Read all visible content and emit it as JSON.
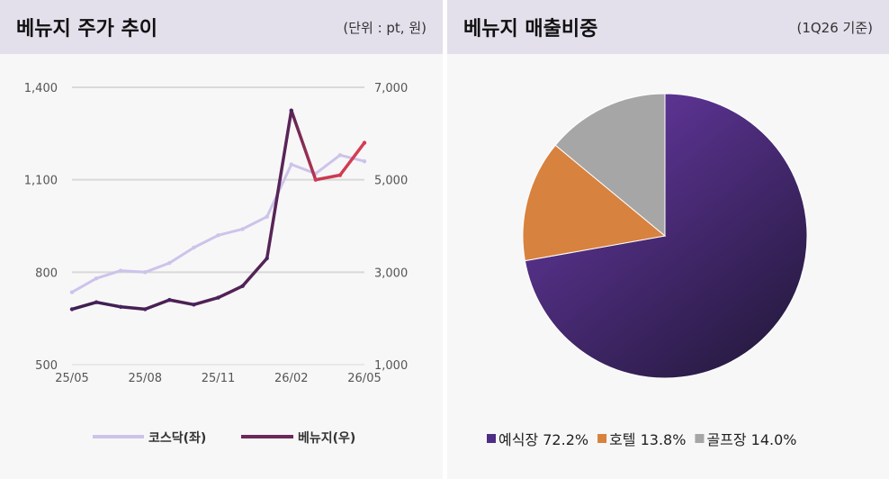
{
  "left": {
    "title": "베뉴지 주가 추이",
    "unit": "(단위 : pt, 원)"
  },
  "right": {
    "title": "베뉴지 매출비중",
    "unit": "(1Q26 기준)"
  },
  "chart_data": [
    {
      "type": "line",
      "x_ticks": [
        "25/05",
        "25/08",
        "25/11",
        "26/02",
        "26/05"
      ],
      "y_left": {
        "ticks": [
          "1,400",
          "1,100",
          "800",
          "500"
        ],
        "ylim": [
          500,
          1400
        ]
      },
      "y_right": {
        "ticks": [
          "7,000",
          "5,000",
          "3,000",
          "1,000"
        ],
        "ylim": [
          1000,
          7000
        ]
      },
      "grid": true,
      "legend": "bottom",
      "series": [
        {
          "name": "코스닥(좌)",
          "axis": "left",
          "color": "#cdc3ea",
          "x": [
            "25/05",
            "25/06",
            "25/07",
            "25/08",
            "25/09",
            "25/10",
            "25/11",
            "25/12",
            "26/01",
            "26/02",
            "26/03",
            "26/04",
            "26/05"
          ],
          "values": [
            735,
            780,
            805,
            800,
            830,
            880,
            920,
            940,
            980,
            1150,
            1120,
            1180,
            1160
          ]
        },
        {
          "name": "베뉴지(우)",
          "axis": "right",
          "color_start": "#4a2260",
          "color_end": "#d43a52",
          "x": [
            "25/05",
            "25/06",
            "25/07",
            "25/08",
            "25/09",
            "25/10",
            "25/11",
            "25/12",
            "26/01",
            "26/02",
            "26/03",
            "26/04",
            "26/05"
          ],
          "values": [
            2200,
            2350,
            2250,
            2200,
            2400,
            2300,
            2450,
            2700,
            3300,
            6500,
            5000,
            5100,
            5800
          ]
        }
      ]
    },
    {
      "type": "pie",
      "legend": "bottom",
      "slices": [
        {
          "label": "예식장",
          "value": 72.2,
          "text": "72.2%",
          "color": "#4e2e85"
        },
        {
          "label": "호텔",
          "value": 13.8,
          "text": "13.8%",
          "color": "#d8823f"
        },
        {
          "label": "골프장",
          "value": 14.0,
          "text": "14.0%",
          "color": "#a6a6a6"
        }
      ]
    }
  ]
}
